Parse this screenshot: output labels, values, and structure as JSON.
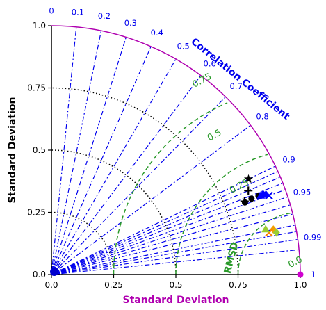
{
  "chart_data": {
    "type": "taylor-diagram",
    "xlabel": "Standard Deviation",
    "ylabel": "Standard Deviation",
    "correlation_title": "Correlation Coefficient",
    "rmsd_title": "RMSD",
    "std_range": [
      0,
      1.0
    ],
    "std_ticks": [
      "0.0",
      "0.25",
      "0.5",
      "0.75",
      "1.0"
    ],
    "std_tick_values": [
      0,
      0.25,
      0.5,
      0.75,
      1.0
    ],
    "y_ticks": [
      "0.0",
      "0.25",
      "0.5",
      "0.75",
      "1.0"
    ],
    "correlation_labels": [
      "0",
      "0.1",
      "0.2",
      "0.3",
      "0.4",
      "0.5",
      "0.6",
      "0.7",
      "0.8",
      "0.9",
      "0.95",
      "0.99",
      "1"
    ],
    "correlation_values": [
      0,
      0.1,
      0.2,
      0.3,
      0.4,
      0.5,
      0.6,
      0.7,
      0.8,
      0.9,
      0.95,
      0.99,
      1.0
    ],
    "rms_labels": [
      "0.0",
      "0.25",
      "0.5",
      "0.75"
    ],
    "rms_values": [
      0.0,
      0.25,
      0.5,
      0.75
    ],
    "reference": {
      "std": 1.0,
      "corr": 1.0
    },
    "points": [
      {
        "marker": "star",
        "color": "#000000",
        "std": 0.88,
        "corr": 0.9
      },
      {
        "marker": "plus",
        "color": "#000000",
        "std": 0.83,
        "corr": 0.935
      },
      {
        "marker": "plus",
        "color": "#000000",
        "std": 0.86,
        "corr": 0.92
      },
      {
        "marker": "circle",
        "color": "#000000",
        "std": 0.83,
        "corr": 0.937
      },
      {
        "marker": "circle",
        "color": "#000000",
        "std": 0.86,
        "corr": 0.935
      },
      {
        "marker": "circle",
        "color": "#000000",
        "std": 0.89,
        "corr": 0.935
      },
      {
        "marker": "diamond",
        "color": "#0000ff",
        "std": 0.92,
        "corr": 0.937
      },
      {
        "marker": "diamond",
        "color": "#0000ff",
        "std": 0.91,
        "corr": 0.935
      },
      {
        "marker": "triangle",
        "color": "#0000ff",
        "std": 0.9,
        "corr": 0.935
      },
      {
        "marker": "x",
        "color": "#0000ff",
        "std": 0.93,
        "corr": 0.94
      },
      {
        "marker": "diamond",
        "color": "#f0a000",
        "std": 0.91,
        "corr": 0.98
      },
      {
        "marker": "x",
        "color": "#ff8000",
        "std": 0.89,
        "corr": 0.982
      },
      {
        "marker": "diamond",
        "color": "#9acd32",
        "std": 0.92,
        "corr": 0.983
      },
      {
        "marker": "triangle",
        "color": "#9acd32",
        "std": 0.88,
        "corr": 0.978
      }
    ],
    "colors": {
      "correlation_lines": "#0000ee",
      "rms_contours": "#2a9a2a",
      "std_arcs": "#000000",
      "outer_arc": "#b000b0",
      "reference": "#d000d0"
    }
  }
}
